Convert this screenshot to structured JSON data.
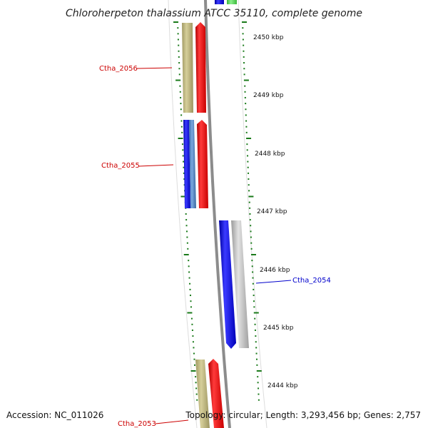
{
  "title": "Chloroherpeton thalassium ATCC 35110, complete genome",
  "footer": {
    "accession": "Accession: NC_011026",
    "stats": "Topology: circular; Length: 3,293,456 bp; Genes: 2,757"
  },
  "colors": {
    "forward_label": "#cc0000",
    "reverse_label": "#0000cc",
    "tick": "#1a7a1a",
    "backbone": "#888888",
    "red_arrow": "#ee1111",
    "blue_arrow": "#1111ee",
    "khaki_arrow": "#bdb57e",
    "steelblue_arrow": "#4f86c6",
    "gray_arrow": "#b4b4b4",
    "green_arrow": "#55d055"
  },
  "kbp_ticks": [
    "2450 kbp",
    "2449 kbp",
    "2448 kbp",
    "2447 kbp",
    "2446 kbp",
    "2445 kbp",
    "2444 kbp"
  ],
  "genes": [
    {
      "name": "Ctha_2056",
      "strand": "forward"
    },
    {
      "name": "Ctha_2055",
      "strand": "forward"
    },
    {
      "name": "Ctha_2054",
      "strand": "reverse"
    },
    {
      "name": "Ctha_2053",
      "strand": "forward"
    }
  ]
}
